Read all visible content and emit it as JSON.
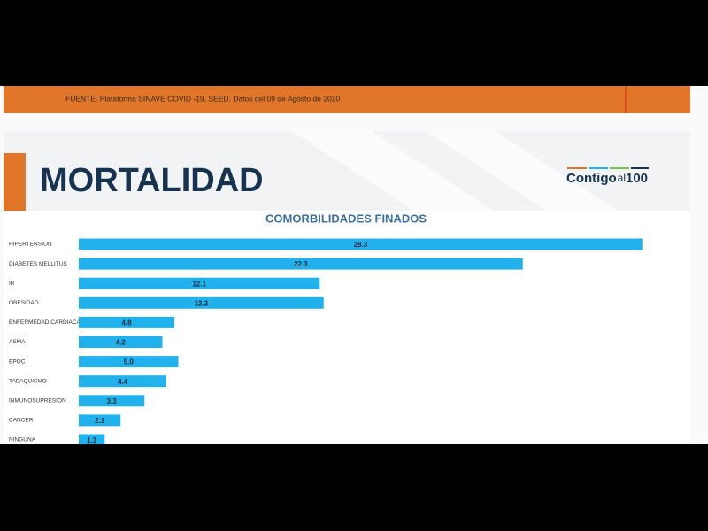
{
  "header": {
    "source": "FUENTE. Plataforma SINAVE COVID -19, SEED. Datos del 09 de Agosto de 2020"
  },
  "slide": {
    "title": "MORTALIDAD"
  },
  "logo": {
    "word": "Contigo",
    "small": "al",
    "number": "100"
  },
  "chart_data": {
    "type": "hbar",
    "title": "COMORBILIDADES FINADOS",
    "categories": [
      "HIPERTENSION",
      "DIABETES MELLITUS",
      "IR",
      "OBESIDAD",
      "ENFERMEDAD CARDIACA",
      "ASMA",
      "EPOC",
      "TABAQUISMO",
      "INMUNOSUPRESION",
      "CANCER",
      "NINGUNA"
    ],
    "values": [
      28.3,
      22.3,
      12.1,
      12.3,
      4.8,
      4.2,
      5.0,
      4.4,
      3.3,
      2.1,
      1.3
    ],
    "value_labels": [
      "28.3",
      "22.3",
      "12.1",
      "12.3",
      "4.8",
      "4.2",
      "5.0",
      "4.4",
      "3.3",
      "2.1",
      "1.3"
    ],
    "color": "#21b1ec"
  }
}
